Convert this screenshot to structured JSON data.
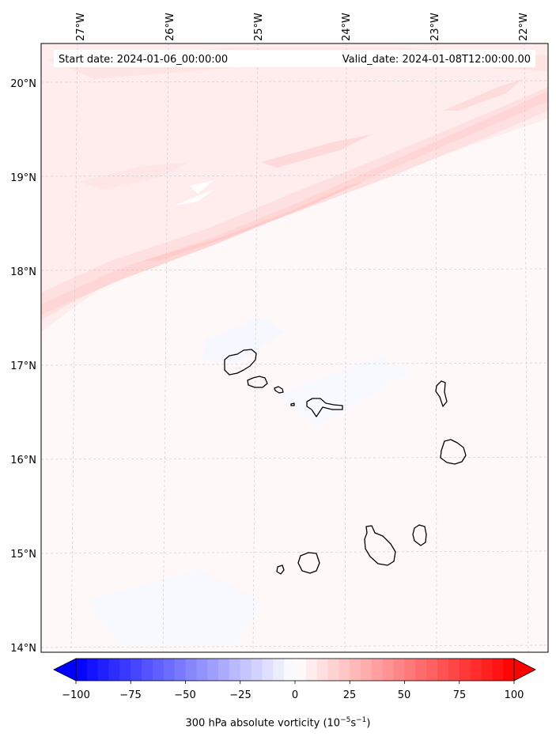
{
  "info": {
    "start_date": "Start date: 2024-01-06_00:00:00",
    "valid_date": "Valid_date: 2024-01-08T12:00:00.00"
  },
  "axes": {
    "lon_labels": [
      "27°W",
      "26°W",
      "25°W",
      "24°W",
      "23°W",
      "22°W"
    ],
    "lat_labels": [
      "20°N",
      "19°N",
      "18°N",
      "17°N",
      "16°N",
      "15°N",
      "14°N"
    ]
  },
  "colorbar": {
    "ticks": [
      "−100",
      "−75",
      "−50",
      "−25",
      "0",
      "25",
      "50",
      "75",
      "100"
    ],
    "vmin": -100,
    "vmax": 100,
    "label_prefix": "300 hPa absolute vorticity (10",
    "label_exp1": "−5",
    "label_mid": "s",
    "label_exp2": "−1",
    "label_suffix": ")",
    "negative_color": "#0000ff",
    "positive_color": "#ff0000"
  },
  "features": {
    "islands": [
      "santo-antao",
      "sao-vicente",
      "santa-luzia",
      "ilheu-raso",
      "sao-nicolau",
      "sal",
      "boa-vista",
      "maio",
      "santiago",
      "fogo",
      "brava"
    ]
  }
}
